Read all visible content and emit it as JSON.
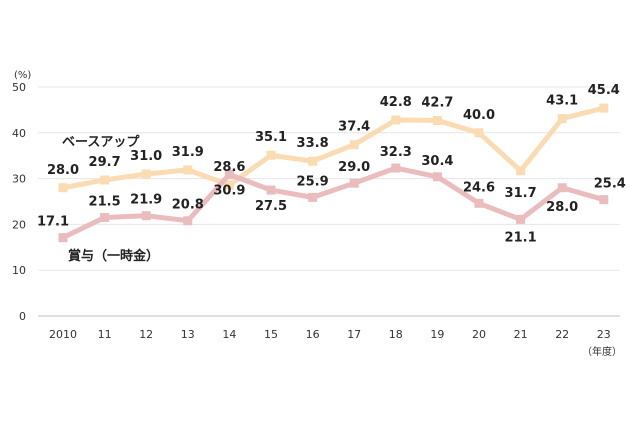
{
  "chart_data": {
    "type": "line",
    "y_unit": "(%)",
    "x_unit": "（年度）",
    "ylim": [
      0,
      50
    ],
    "yticks": [
      0,
      10,
      20,
      30,
      40,
      50
    ],
    "categories": [
      "2010",
      "11",
      "12",
      "13",
      "14",
      "15",
      "16",
      "17",
      "18",
      "19",
      "20",
      "21",
      "22",
      "23"
    ],
    "grid": true,
    "legend": "inline labels",
    "series": [
      {
        "name": "ベースアップ",
        "color": "#fbdcb2",
        "values": [
          28.0,
          29.7,
          31.0,
          31.9,
          28.6,
          35.1,
          33.8,
          37.4,
          42.8,
          42.7,
          40.0,
          31.7,
          43.1,
          45.4
        ],
        "labels": [
          "28.0",
          "29.7",
          "31.0",
          "31.9",
          "28.6",
          "35.1",
          "33.8",
          "37.4",
          "42.8",
          "42.7",
          "40.0",
          "31.7",
          "43.1",
          "45.4"
        ]
      },
      {
        "name": "賞与（一時金）",
        "color": "#eabcbe",
        "values": [
          17.1,
          21.5,
          21.9,
          20.8,
          30.9,
          27.5,
          25.9,
          29.0,
          32.3,
          30.4,
          24.6,
          21.1,
          28.0,
          25.4
        ],
        "labels": [
          "17.1",
          "21.5",
          "21.9",
          "20.8",
          "30.9",
          "27.5",
          "25.9",
          "29.0",
          "32.3",
          "30.4",
          "24.6",
          "21.1",
          "28.0",
          "25.4"
        ]
      }
    ]
  }
}
